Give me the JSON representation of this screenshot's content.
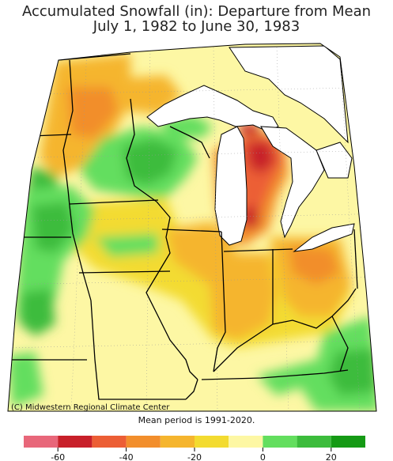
{
  "title_line_1": "Accumulated Snowfall (in): Departure from Mean",
  "title_line_2": "July 1, 1982 to June 30, 1983",
  "credit": "(C) Midwestern Regional Climate Center",
  "mean_note": "Mean period is 1991-2020.",
  "legend": {
    "bins": [
      {
        "from": -70,
        "to": -60,
        "color": "#e8677a"
      },
      {
        "from": -60,
        "to": -50,
        "color": "#c8202a"
      },
      {
        "from": -50,
        "to": -40,
        "color": "#ec5e35"
      },
      {
        "from": -40,
        "to": -30,
        "color": "#f28e2c"
      },
      {
        "from": -30,
        "to": -20,
        "color": "#f5b52e"
      },
      {
        "from": -20,
        "to": -10,
        "color": "#f3db30"
      },
      {
        "from": -10,
        "to": 0,
        "color": "#fdf7a4"
      },
      {
        "from": 0,
        "to": 10,
        "color": "#63de5e"
      },
      {
        "from": 10,
        "to": 20,
        "color": "#3cbc3c"
      },
      {
        "from": 20,
        "to": 30,
        "color": "#159a15"
      }
    ],
    "ticks": [
      "-60",
      "-40",
      "-20",
      "0",
      "20"
    ]
  },
  "colors": {
    "water": "#ffffff",
    "state_lines": "#000000",
    "grid": "#999999"
  }
}
